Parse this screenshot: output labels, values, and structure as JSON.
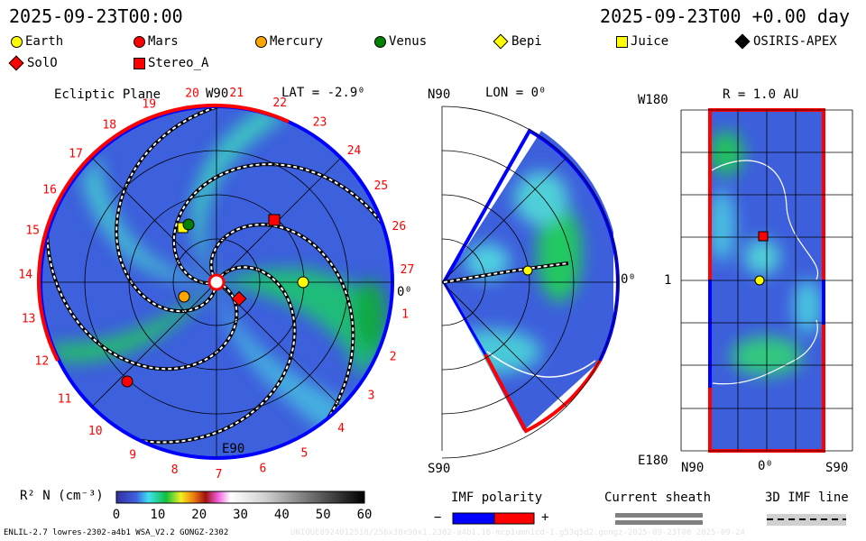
{
  "header": {
    "time_left": "2025-09-23T00:00",
    "time_right": "2025-09-23T00 +0.00 day"
  },
  "legend": [
    {
      "label": "Earth",
      "color": "#ffff00",
      "shape": "circle"
    },
    {
      "label": "Mars",
      "color": "#ff0000",
      "shape": "circle"
    },
    {
      "label": "Mercury",
      "color": "#ffa500",
      "shape": "circle"
    },
    {
      "label": "Venus",
      "color": "#008000",
      "shape": "circle"
    },
    {
      "label": "Bepi",
      "color": "#ffff00",
      "shape": "diamond"
    },
    {
      "label": "Juice",
      "color": "#ffff00",
      "shape": "square"
    },
    {
      "label": "OSIRIS-APEX",
      "color": "#000000",
      "shape": "diamond"
    },
    {
      "label": "SolO",
      "color": "#ff0000",
      "shape": "diamond"
    },
    {
      "label": "Stereo_A",
      "color": "#ff0000",
      "shape": "square"
    }
  ],
  "panels": {
    "ecliptic": {
      "title": "Ecliptic Plane",
      "lat": "LAT = -2.9⁰",
      "top": "W90",
      "bottom": "E90",
      "right": "0⁰",
      "sectors": [
        "1",
        "2",
        "3",
        "4",
        "5",
        "6",
        "7",
        "8",
        "9",
        "10",
        "11",
        "12",
        "13",
        "14",
        "15",
        "16",
        "17",
        "18",
        "19",
        "20",
        "21",
        "22",
        "23",
        "24",
        "25",
        "26",
        "27"
      ]
    },
    "meridional": {
      "top": "N90",
      "lon": "LON = 0⁰",
      "bottom": "S90",
      "right": "0⁰"
    },
    "radial": {
      "r": "R = 1.0 AU",
      "top": "W180",
      "mid": "1",
      "bottom": "E180",
      "x_left": "N90",
      "x_mid": "0⁰",
      "x_right": "S90"
    }
  },
  "colorbar": {
    "label": "R² N (cm⁻³)",
    "ticks": [
      "0",
      "10",
      "20",
      "30",
      "40",
      "50",
      "60"
    ]
  },
  "imf": {
    "title": "IMF polarity",
    "minus": "−",
    "plus": "+",
    "neg_color": "#0000ff",
    "pos_color": "#ff0000"
  },
  "sheath": {
    "title": "Current sheath"
  },
  "imfline": {
    "title": "3D IMF line"
  },
  "footer": {
    "model": "ENLIL-2.7 lowres-2302-a4b1 WSA_V2.2 GONGZ-2302",
    "run": "UNIQUE0924012518/256x30x90x1.2302-a4b1.16-mcp1umn1cd-1.g53q5d2.gongz-2025-09-23T00   2025-09-24"
  }
}
